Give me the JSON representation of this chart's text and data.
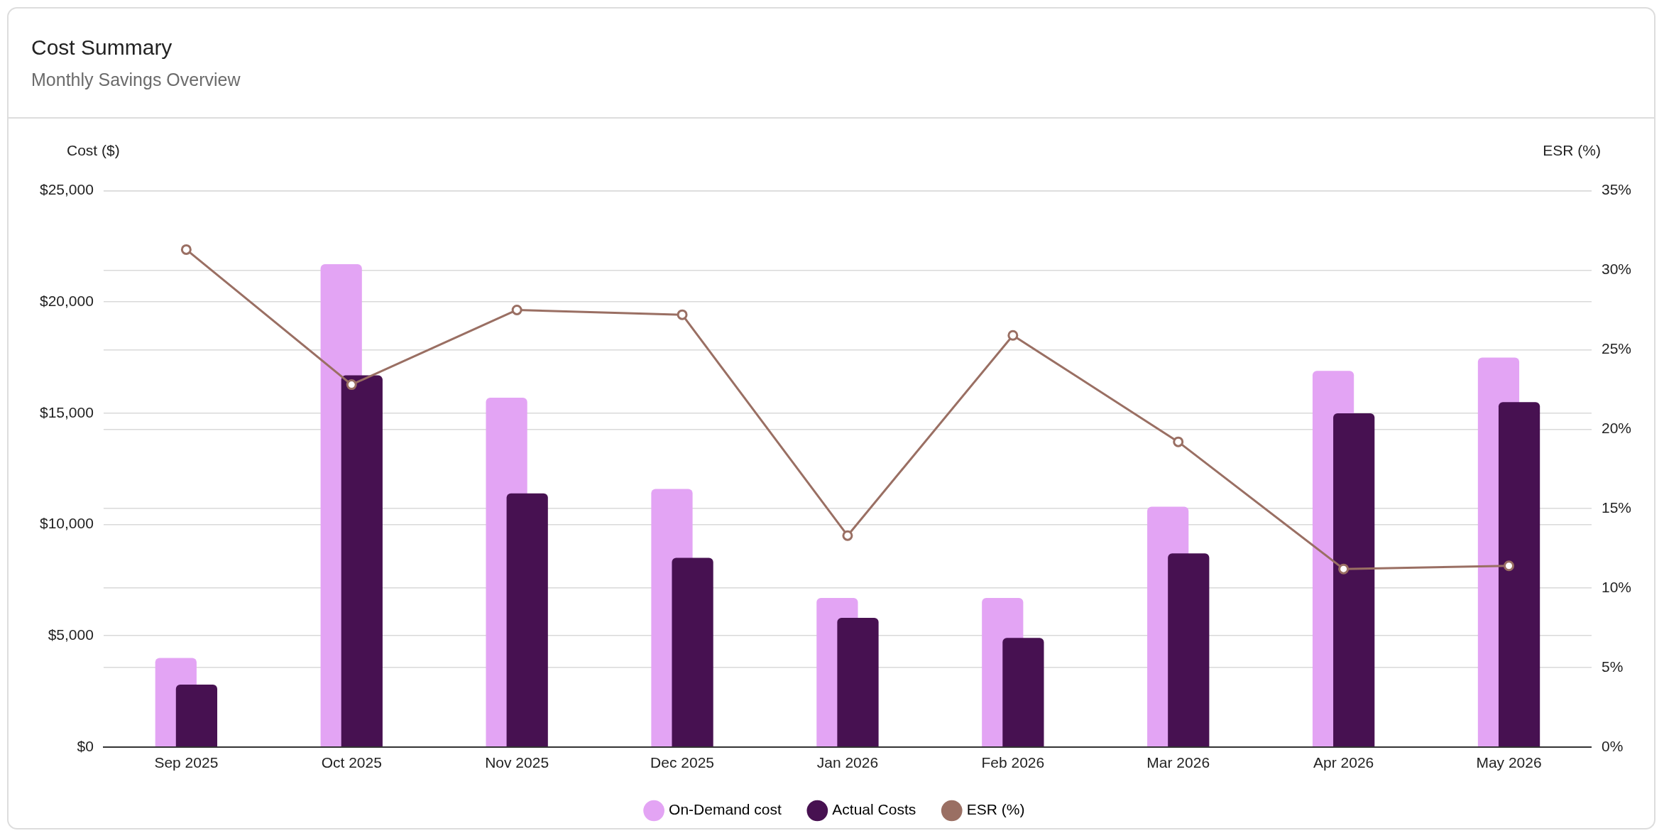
{
  "chart_data": {
    "type": "bar",
    "title": "Cost Summary",
    "subtitle": "Monthly Savings Overview",
    "ylabel": "Cost ($)",
    "y2label": "ESR (%)",
    "categories": [
      "Sep 2025",
      "Oct 2025",
      "Nov 2025",
      "Dec 2025",
      "Jan 2026",
      "Feb 2026",
      "Mar 2026",
      "Apr 2026",
      "May 2026"
    ],
    "series": [
      {
        "name": "On-Demand cost",
        "color": "#e3a4f4",
        "values": [
          4000,
          21700,
          15700,
          11600,
          6700,
          6700,
          10800,
          16900,
          17500
        ]
      },
      {
        "name": "Actual Costs",
        "color": "#471151",
        "values": [
          2800,
          16700,
          11400,
          8500,
          5800,
          4900,
          8700,
          15000,
          15500
        ]
      },
      {
        "name": "ESR (%)",
        "type": "line",
        "axis": "y2",
        "color": "#9a6f63",
        "marker": "circle",
        "values": [
          31.3,
          22.8,
          27.5,
          27.2,
          13.3,
          25.9,
          19.2,
          11.2,
          11.4
        ]
      }
    ],
    "ylim": [
      0,
      25000
    ],
    "yticks": [
      {
        "value": 0,
        "label": "$0"
      },
      {
        "value": 5000,
        "label": "$5,000"
      },
      {
        "value": 10000,
        "label": "$10,000"
      },
      {
        "value": 15000,
        "label": "$15,000"
      },
      {
        "value": 20000,
        "label": "$20,000"
      },
      {
        "value": 25000,
        "label": "$25,000"
      }
    ],
    "y2lim": [
      0,
      35
    ],
    "y2ticks": [
      {
        "value": 0,
        "label": "0%"
      },
      {
        "value": 5,
        "label": "5%"
      },
      {
        "value": 10,
        "label": "10%"
      },
      {
        "value": 15,
        "label": "15%"
      },
      {
        "value": 20,
        "label": "20%"
      },
      {
        "value": 25,
        "label": "25%"
      },
      {
        "value": 30,
        "label": "30%"
      },
      {
        "value": 35,
        "label": "35%"
      }
    ],
    "grid": "y",
    "legend": "bottom"
  }
}
